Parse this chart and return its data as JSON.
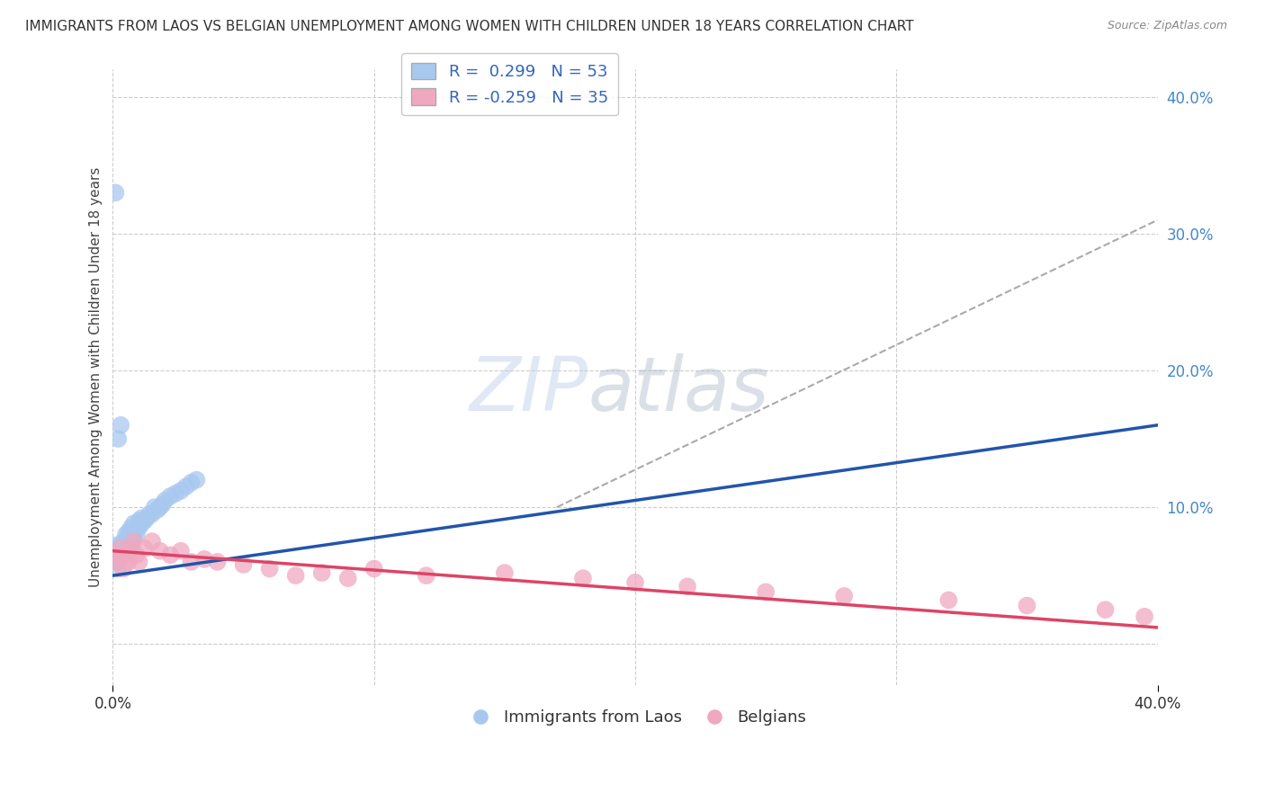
{
  "title": "IMMIGRANTS FROM LAOS VS BELGIAN UNEMPLOYMENT AMONG WOMEN WITH CHILDREN UNDER 18 YEARS CORRELATION CHART",
  "source": "Source: ZipAtlas.com",
  "ylabel": "Unemployment Among Women with Children Under 18 years",
  "xlim": [
    0,
    0.4
  ],
  "ylim": [
    -0.03,
    0.42
  ],
  "legend_label1": "Immigrants from Laos",
  "legend_label2": "Belgians",
  "r1": 0.299,
  "n1": 53,
  "r2": -0.259,
  "n2": 35,
  "color_blue": "#a8c8f0",
  "color_pink": "#f0a8c0",
  "color_blue_line": "#2255aa",
  "color_pink_line": "#dd4466",
  "color_dashed": "#aaaaaa",
  "background": "#ffffff",
  "grid_color": "#cccccc",
  "blue_scatter_x": [
    0.001,
    0.001,
    0.001,
    0.001,
    0.002,
    0.002,
    0.002,
    0.002,
    0.002,
    0.003,
    0.003,
    0.003,
    0.003,
    0.004,
    0.004,
    0.004,
    0.005,
    0.005,
    0.005,
    0.005,
    0.006,
    0.006,
    0.006,
    0.007,
    0.007,
    0.007,
    0.008,
    0.008,
    0.008,
    0.009,
    0.009,
    0.01,
    0.01,
    0.011,
    0.011,
    0.012,
    0.013,
    0.014,
    0.015,
    0.016,
    0.017,
    0.018,
    0.019,
    0.02,
    0.022,
    0.024,
    0.026,
    0.028,
    0.03,
    0.032,
    0.001,
    0.002,
    0.003
  ],
  "blue_scatter_y": [
    0.06,
    0.065,
    0.068,
    0.072,
    0.06,
    0.062,
    0.065,
    0.07,
    0.055,
    0.065,
    0.07,
    0.068,
    0.072,
    0.065,
    0.07,
    0.075,
    0.068,
    0.072,
    0.075,
    0.08,
    0.072,
    0.078,
    0.082,
    0.075,
    0.08,
    0.085,
    0.078,
    0.082,
    0.088,
    0.08,
    0.085,
    0.085,
    0.09,
    0.088,
    0.092,
    0.09,
    0.092,
    0.095,
    0.095,
    0.1,
    0.098,
    0.1,
    0.102,
    0.105,
    0.108,
    0.11,
    0.112,
    0.115,
    0.118,
    0.12,
    0.33,
    0.15,
    0.16
  ],
  "pink_scatter_x": [
    0.001,
    0.002,
    0.003,
    0.004,
    0.005,
    0.006,
    0.007,
    0.008,
    0.009,
    0.01,
    0.012,
    0.015,
    0.018,
    0.022,
    0.026,
    0.03,
    0.035,
    0.04,
    0.05,
    0.06,
    0.07,
    0.08,
    0.09,
    0.1,
    0.12,
    0.15,
    0.18,
    0.2,
    0.22,
    0.25,
    0.28,
    0.32,
    0.35,
    0.38,
    0.395
  ],
  "pink_scatter_y": [
    0.065,
    0.06,
    0.07,
    0.055,
    0.065,
    0.06,
    0.07,
    0.075,
    0.065,
    0.06,
    0.07,
    0.075,
    0.068,
    0.065,
    0.068,
    0.06,
    0.062,
    0.06,
    0.058,
    0.055,
    0.05,
    0.052,
    0.048,
    0.055,
    0.05,
    0.052,
    0.048,
    0.045,
    0.042,
    0.038,
    0.035,
    0.032,
    0.028,
    0.025,
    0.02
  ],
  "blue_line_x": [
    0.0,
    0.4
  ],
  "blue_line_y": [
    0.05,
    0.16
  ],
  "pink_line_x": [
    0.0,
    0.4
  ],
  "pink_line_y": [
    0.068,
    0.012
  ],
  "dashed_line_x": [
    0.17,
    0.4
  ],
  "dashed_line_y": [
    0.1,
    0.31
  ]
}
